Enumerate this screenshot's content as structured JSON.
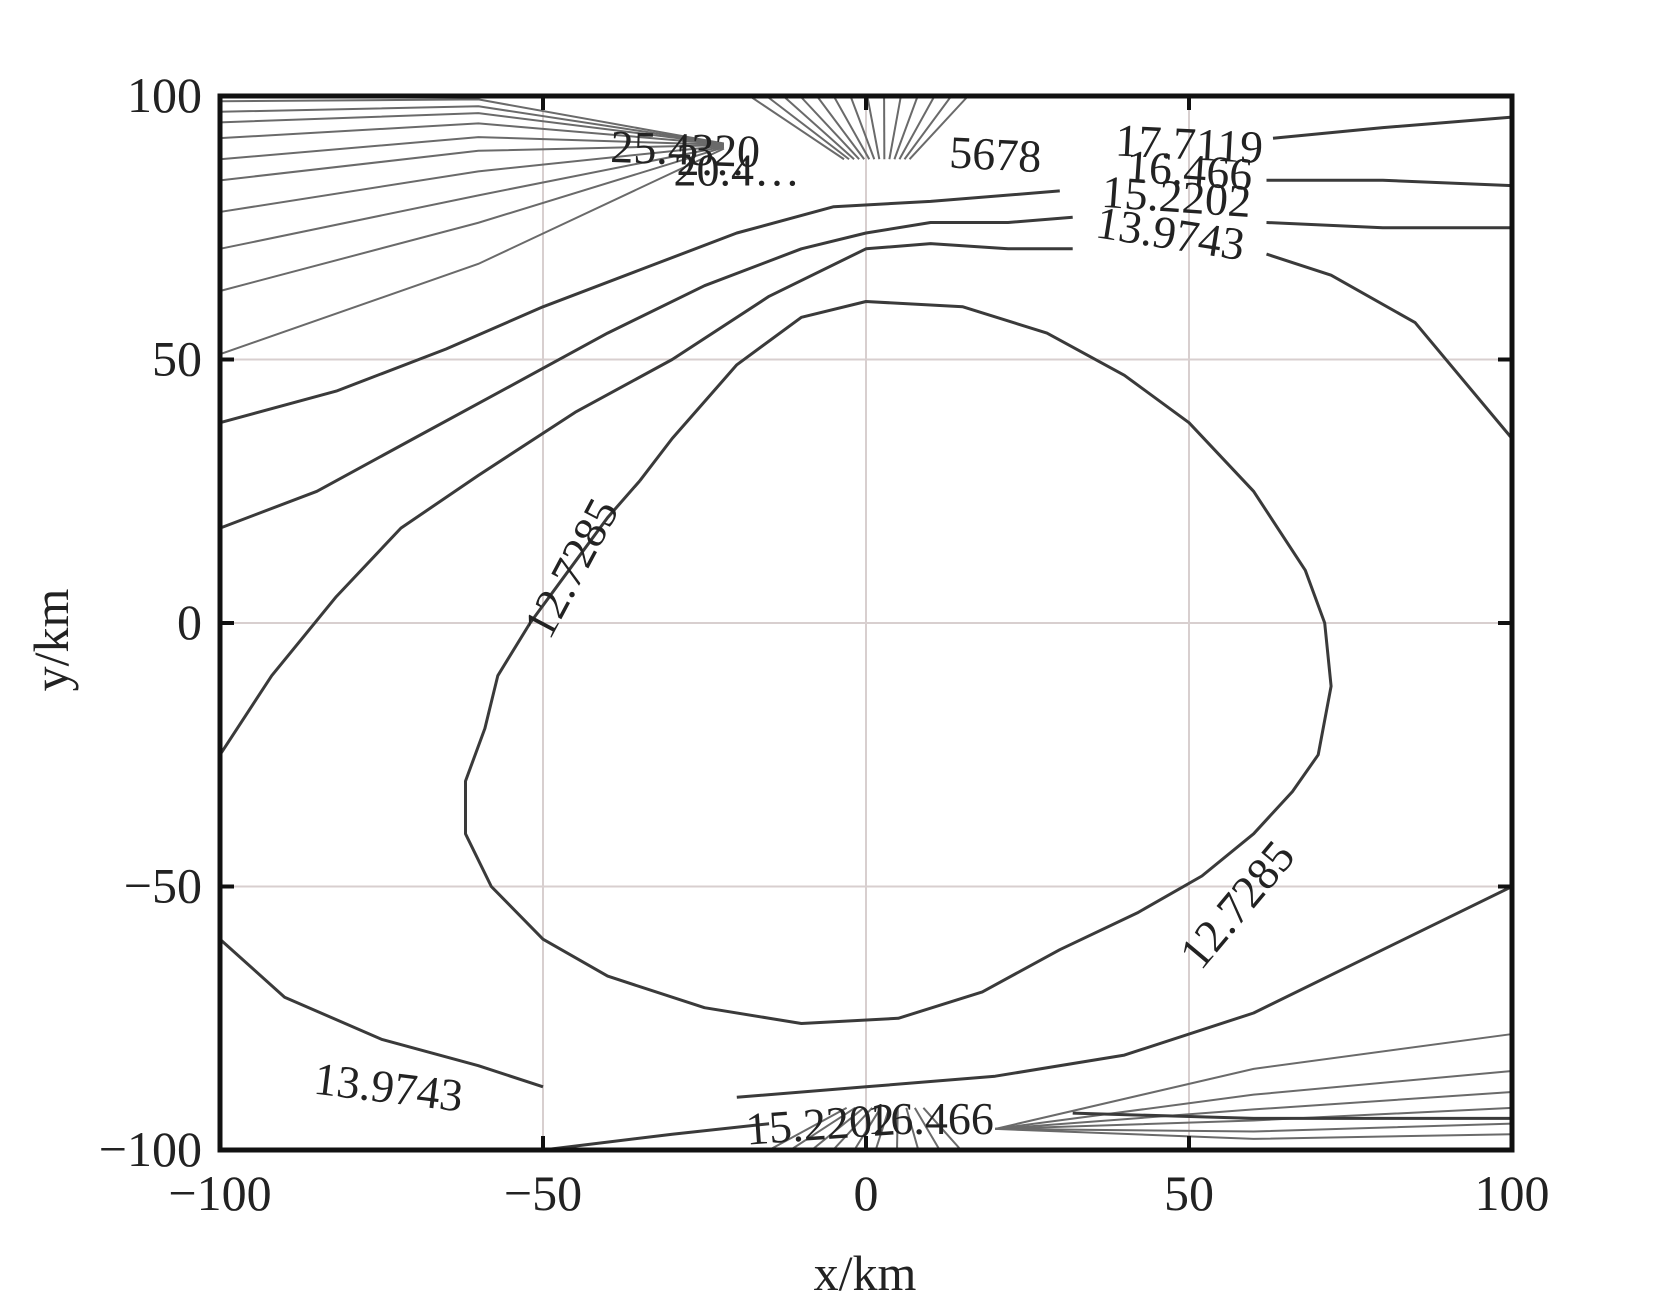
{
  "chart_data": {
    "type": "contour",
    "xlabel": "x/km",
    "ylabel": "y/km",
    "xlim": [
      -100,
      100
    ],
    "ylim": [
      -100,
      100
    ],
    "xticks": [
      "−100",
      "−50",
      "0",
      "50",
      "100"
    ],
    "yticks": [
      "100",
      "50",
      "0",
      "−50",
      "−100"
    ],
    "grid": true,
    "levels": [
      12.7285,
      13.9743,
      15.2202,
      16.466,
      17.7119
    ],
    "contour_labels": [
      {
        "text": "12.7285",
        "x": -45,
        "y": 10
      },
      {
        "text": "12.7285",
        "x": 58,
        "y": -54
      },
      {
        "text": "13.9743",
        "x": -74,
        "y": -89
      },
      {
        "text": "13.9743",
        "x": 47,
        "y": 73
      },
      {
        "text": "15.2202",
        "x": 48,
        "y": 80
      },
      {
        "text": "16.466",
        "x": 50,
        "y": 85
      },
      {
        "text": "17.7119",
        "x": 50,
        "y": 90
      },
      {
        "text": "15.2202",
        "x": -7,
        "y": -96
      },
      {
        "text": "16.466",
        "x": 10,
        "y": -95
      },
      {
        "text": "25.4320",
        "x": -28,
        "y": 89
      },
      {
        "text": "2…",
        "x": -24,
        "y": 87
      },
      {
        "text": "20.4…",
        "x": -20,
        "y": 85
      },
      {
        "text": "5678",
        "x": 20,
        "y": 88
      }
    ],
    "contours": [
      {
        "level": 12.7285,
        "points": [
          [
            -35,
            27
          ],
          [
            -40,
            20
          ],
          [
            -46,
            10
          ],
          [
            -52,
            0
          ],
          [
            -57,
            -10
          ],
          [
            -59,
            -20
          ],
          [
            -62,
            -30
          ],
          [
            -62,
            -40
          ],
          [
            -58,
            -50
          ],
          [
            -50,
            -60
          ],
          [
            -40,
            -67
          ],
          [
            -25,
            -73
          ],
          [
            -10,
            -76
          ],
          [
            5,
            -75
          ],
          [
            18,
            -70
          ],
          [
            30,
            -62
          ],
          [
            42,
            -55
          ],
          [
            52,
            -48
          ],
          [
            60,
            -40
          ],
          [
            66,
            -32
          ],
          [
            70,
            -25
          ],
          [
            72,
            -12
          ],
          [
            71,
            0
          ],
          [
            68,
            10
          ],
          [
            60,
            25
          ],
          [
            50,
            38
          ],
          [
            40,
            47
          ],
          [
            28,
            55
          ],
          [
            15,
            60
          ],
          [
            0,
            61
          ],
          [
            -10,
            58
          ],
          [
            -20,
            49
          ],
          [
            -30,
            35
          ],
          [
            -35,
            27
          ]
        ]
      },
      {
        "level": 13.9743,
        "points": [
          [
            -100,
            -25
          ],
          [
            -92,
            -10
          ],
          [
            -82,
            5
          ],
          [
            -72,
            18
          ],
          [
            -60,
            28
          ],
          [
            -45,
            40
          ],
          [
            -30,
            50
          ],
          [
            -15,
            62
          ],
          [
            0,
            71
          ],
          [
            10,
            72
          ],
          [
            22,
            71
          ],
          [
            32,
            71
          ]
        ]
      },
      {
        "level": 13.9743,
        "points": [
          [
            62,
            70
          ],
          [
            72,
            66
          ],
          [
            85,
            57
          ],
          [
            100,
            35
          ]
        ]
      },
      {
        "level": 13.9743,
        "points": [
          [
            -100,
            -60
          ],
          [
            -90,
            -71
          ],
          [
            -75,
            -79
          ],
          [
            -60,
            -84
          ],
          [
            -50,
            -88
          ]
        ]
      },
      {
        "level": 13.9743,
        "points": [
          [
            -20,
            -90
          ],
          [
            0,
            -88
          ],
          [
            20,
            -86
          ],
          [
            40,
            -82
          ],
          [
            60,
            -74
          ],
          [
            80,
            -62
          ],
          [
            100,
            -50
          ]
        ]
      },
      {
        "level": 15.2202,
        "points": [
          [
            -100,
            18
          ],
          [
            -85,
            25
          ],
          [
            -70,
            35
          ],
          [
            -55,
            45
          ],
          [
            -40,
            55
          ],
          [
            -25,
            64
          ],
          [
            -10,
            71
          ],
          [
            0,
            74
          ],
          [
            10,
            76
          ],
          [
            22,
            76
          ],
          [
            32,
            77
          ]
        ]
      },
      {
        "level": 15.2202,
        "points": [
          [
            62,
            76
          ],
          [
            80,
            75
          ],
          [
            100,
            75
          ]
        ]
      },
      {
        "level": 16.466,
        "points": [
          [
            -100,
            38
          ],
          [
            -82,
            44
          ],
          [
            -65,
            52
          ],
          [
            -50,
            60
          ],
          [
            -35,
            67
          ],
          [
            -20,
            74
          ],
          [
            -5,
            79
          ],
          [
            10,
            80
          ],
          [
            30,
            82
          ]
        ]
      },
      {
        "level": 16.466,
        "points": [
          [
            62,
            84
          ],
          [
            80,
            84
          ],
          [
            100,
            83
          ]
        ]
      },
      {
        "level": 17.7119,
        "points": [
          [
            63,
            92
          ],
          [
            80,
            94
          ],
          [
            100,
            96
          ]
        ]
      },
      {
        "level": 15.2202,
        "points": [
          [
            -50,
            -100
          ],
          [
            -30,
            -97
          ],
          [
            -15,
            -95
          ]
        ]
      },
      {
        "level": 16.466,
        "points": [
          [
            32,
            -93
          ],
          [
            60,
            -94
          ],
          [
            100,
            -94
          ]
        ]
      }
    ],
    "crowded_lines_top_left_y": [
      51,
      63,
      71,
      78,
      84,
      88,
      92,
      95,
      97,
      99
    ],
    "crowded_lines_bottom_right_y": [
      -78,
      -85,
      -89,
      -92,
      -95,
      -97
    ]
  }
}
